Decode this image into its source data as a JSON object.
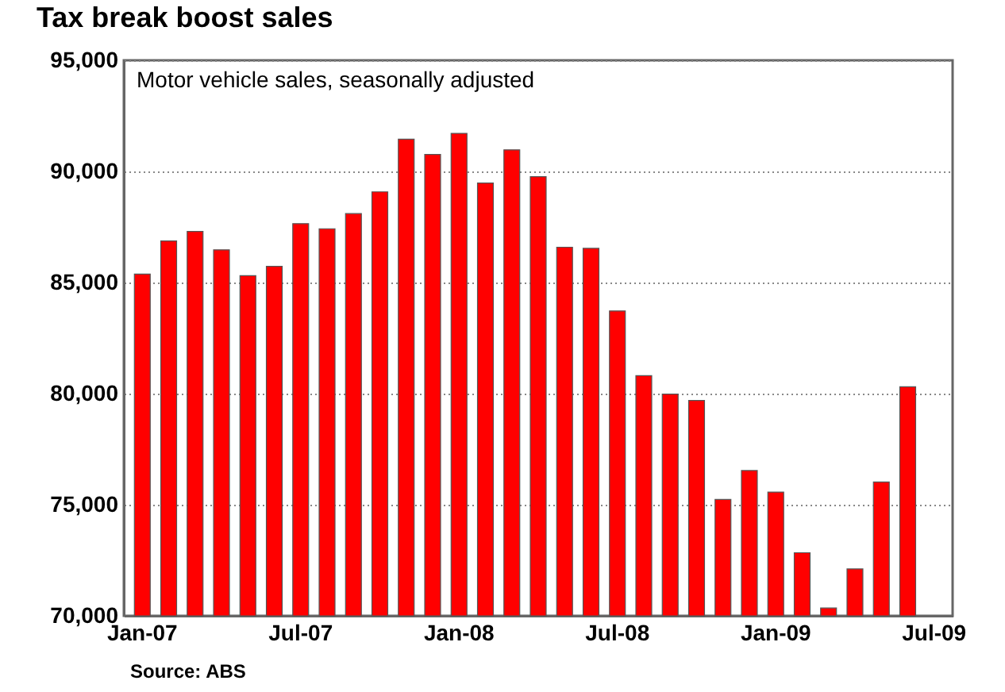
{
  "chart_data": {
    "type": "bar",
    "title": "Tax break boost sales",
    "subtitle": "Motor vehicle sales, seasonally adjusted",
    "annotations": [
      "Source: ABS"
    ],
    "categories": [
      "Jan-07",
      null,
      null,
      null,
      null,
      null,
      "Jul-07",
      null,
      null,
      null,
      null,
      null,
      "Jan-08",
      null,
      null,
      null,
      null,
      null,
      "Jul-08",
      null,
      null,
      null,
      null,
      null,
      "Jan-09",
      null,
      null,
      null,
      null,
      null,
      "Jul-09"
    ],
    "values": [
      85380,
      86870,
      87300,
      86470,
      85310,
      85730,
      87650,
      87420,
      88100,
      89080,
      91450,
      90760,
      91710,
      89480,
      90970,
      89760,
      86590,
      86540,
      83720,
      80810,
      79980,
      79690,
      75240,
      76540,
      75570,
      72840,
      70350,
      72110,
      76020,
      80310,
      null
    ],
    "color": "#ff0000",
    "ylim": [
      70000,
      95000
    ],
    "yticks": [
      {
        "value": 70000,
        "label": "70,000"
      },
      {
        "value": 75000,
        "label": "75,000"
      },
      {
        "value": 80000,
        "label": "80,000"
      },
      {
        "value": 85000,
        "label": "85,000"
      },
      {
        "value": 90000,
        "label": "90,000"
      },
      {
        "value": 95000,
        "label": "95,000"
      }
    ],
    "grid": "y"
  }
}
